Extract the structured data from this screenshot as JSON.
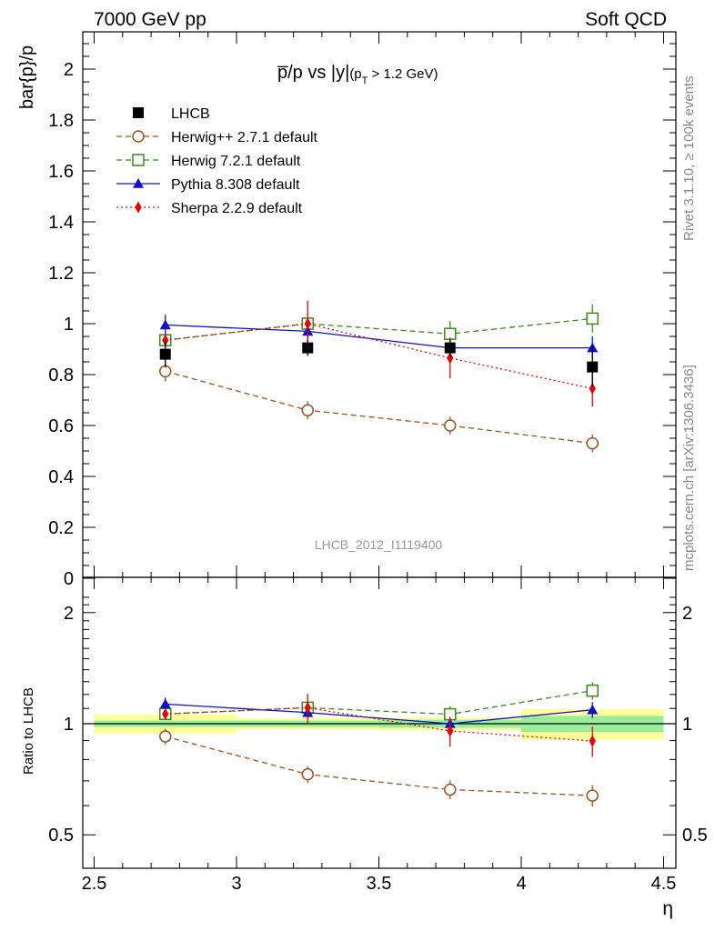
{
  "header": {
    "left": "7000 GeV pp",
    "right": "Soft QCD"
  },
  "side_labels": {
    "rivet": "Rivet 3.1.10, ≥ 100k events",
    "mcplots": "mcplots.cern.ch [arXiv:1306.3436]"
  },
  "chart_data": {
    "type": "line",
    "title": "p̅/p vs |y|(p_T > 1.2 GeV)",
    "title_parts": {
      "main": "p̅/p vs |y|",
      "sub_open": "(p",
      "sub_T": "T",
      "sub_rest": " > 1.2 GeV)"
    },
    "analysis_id": "LHCB_2012_I1119400",
    "xlabel": "η",
    "ylabel_main": "bar{p}/p",
    "ylabel_ratio": "Ratio to LHCB",
    "xlim": [
      2.5,
      4.5
    ],
    "ylim_main": [
      0,
      2.15
    ],
    "ylim_ratio": [
      0.4,
      2.4
    ],
    "ratio_scale": "log",
    "x_ticks": [
      "2.5",
      "3",
      "3.5",
      "4",
      "4.5"
    ],
    "y_ticks_main": [
      "0",
      "0.2",
      "0.4",
      "0.6",
      "0.8",
      "1",
      "1.2",
      "1.4",
      "1.6",
      "1.8",
      "2"
    ],
    "y_ticks_ratio": [
      "0.5",
      "1",
      "2"
    ],
    "x": [
      2.75,
      3.25,
      3.75,
      4.25
    ],
    "bins": [
      [
        2.5,
        3.0
      ],
      [
        3.0,
        3.5
      ],
      [
        3.5,
        4.0
      ],
      [
        4.0,
        4.5
      ]
    ],
    "data": {
      "name": "LHCB",
      "values": [
        0.88,
        0.905,
        0.905,
        0.83
      ],
      "stat_rel": [
        0.02,
        0.02,
        0.025,
        0.05
      ],
      "total_rel": [
        0.06,
        0.035,
        0.04,
        0.095
      ]
    },
    "series": [
      {
        "name": "Herwig++ 2.7.1 default",
        "color": "#a0521e",
        "dash": "6,4",
        "marker": "circle-open",
        "values": [
          0.813,
          0.66,
          0.6,
          0.53
        ],
        "errors": [
          0.04,
          0.035,
          0.035,
          0.035
        ]
      },
      {
        "name": "Herwig 7.2.1 default",
        "color": "#3c8c14",
        "dash": "6,4",
        "marker": "square-open",
        "values": [
          0.935,
          1.0,
          0.96,
          1.02
        ],
        "errors": [
          0.02,
          0.02,
          0.05,
          0.055
        ]
      },
      {
        "name": "Pythia 8.308 default",
        "color": "#1010d0",
        "dash": "",
        "marker": "triangle",
        "values": [
          0.995,
          0.97,
          0.905,
          0.905
        ],
        "errors": [
          0.04,
          0.03,
          0.035,
          0.045
        ]
      },
      {
        "name": "Sherpa 2.2.9 default",
        "color": "#ee0000",
        "dash": "2,3",
        "marker": "diamond",
        "values": [
          0.935,
          1.0,
          0.865,
          0.745
        ],
        "errors": [
          0.025,
          0.09,
          0.08,
          0.07
        ]
      }
    ],
    "legend_placement": "top-left",
    "grid": false
  }
}
